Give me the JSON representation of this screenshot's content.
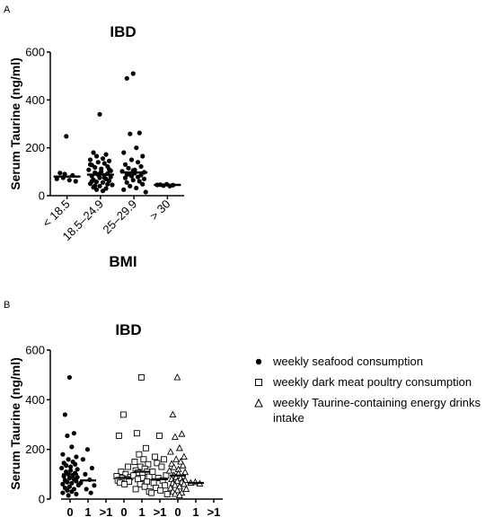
{
  "chart_data": [
    {
      "panel_label": "A",
      "type": "scatter",
      "title": "IBD",
      "xlabel": "BMI",
      "ylabel": "Serum Taurine (ng/ml)",
      "ylim": [
        0,
        600
      ],
      "yticks": [
        0,
        200,
        400,
        600
      ],
      "categories": [
        "< 18.5",
        "18.5–24.9",
        "25–29.9",
        "> 30"
      ],
      "median_lines": [
        80,
        88,
        97,
        45
      ],
      "points": [
        [
          248,
          95,
          85,
          75,
          65,
          70,
          60,
          90
        ],
        [
          340,
          180,
          172,
          165,
          155,
          150,
          145,
          140,
          135,
          128,
          122,
          118,
          112,
          108,
          104,
          100,
          96,
          92,
          88,
          85,
          82,
          78,
          75,
          70,
          66,
          62,
          58,
          55,
          50,
          45,
          40,
          35,
          30,
          25,
          20,
          130,
          110,
          90,
          75,
          60,
          48,
          42
        ],
        [
          510,
          490,
          262,
          258,
          200,
          180,
          165,
          150,
          140,
          130,
          122,
          115,
          108,
          102,
          98,
          94,
          90,
          86,
          82,
          78,
          74,
          70,
          65,
          60,
          55,
          48,
          40,
          32,
          25,
          15,
          105,
          88
        ],
        [
          48,
          46,
          44,
          42,
          40,
          45
        ]
      ]
    },
    {
      "panel_label": "B",
      "type": "scatter",
      "title": "IBD",
      "xlabel": "",
      "ylabel": "Serum Taurine (ng/ml)",
      "ylim": [
        0,
        600
      ],
      "yticks": [
        0,
        200,
        400,
        600
      ],
      "groups": [
        {
          "series": "weekly seafood consumption",
          "categories": [
            "0",
            "1",
            ">1"
          ],
          "median_lines": [
            100,
            75,
            null
          ],
          "points": [
            [
              490,
              340,
              265,
              255,
              210,
              180,
              170,
              160,
              150,
              145,
              140,
              135,
              130,
              125,
              120,
              115,
              110,
              105,
              100,
              96,
              92,
              88,
              84,
              80,
              76,
              72,
              68,
              64,
              60,
              56,
              50,
              45,
              40,
              35,
              30,
              25,
              20,
              15
            ],
            [
              200,
              160,
              125,
              100,
              78,
              65,
              55,
              40,
              25
            ],
            []
          ]
        },
        {
          "series": "weekly dark meat poultry consumption",
          "categories": [
            "0",
            "1",
            ">1"
          ],
          "median_lines": [
            85,
            110,
            80
          ],
          "points": [
            [
              340,
              255,
              130,
              110,
              100,
              92,
              88,
              84,
              80,
              75,
              70,
              66,
              60
            ],
            [
              490,
              265,
              205,
              180,
              160,
              150,
              140,
              130,
              122,
              115,
              110,
              106,
              100,
              95,
              90,
              85,
              80,
              70,
              60,
              50,
              40,
              30
            ],
            [
              255,
              170,
              160,
              145,
              130,
              110,
              95,
              85,
              75,
              65,
              55,
              45,
              35,
              25,
              20
            ]
          ]
        },
        {
          "series": "weekly Taurine-containing energy drinks intake",
          "categories": [
            "0",
            "1",
            ">1"
          ],
          "median_lines": [
            95,
            65,
            null
          ],
          "points": [
            [
              490,
              340,
              262,
              250,
              205,
              190,
              170,
              160,
              150,
              142,
              135,
              128,
              120,
              114,
              108,
              102,
              96,
              92,
              88,
              84,
              80,
              76,
              72,
              68,
              64,
              60,
              56,
              50,
              45,
              40,
              35,
              30,
              25,
              20,
              15
            ],
            [
              68,
              65,
              62
            ],
            []
          ]
        }
      ],
      "legend": {
        "placement": "right",
        "entries": [
          {
            "symbol": "filled-circle",
            "label": "weekly seafood consumption"
          },
          {
            "symbol": "open-square",
            "label": "weekly dark meat poultry consumption"
          },
          {
            "symbol": "open-triangle",
            "label": "weekly Taurine-containing energy drinks intake"
          }
        ]
      }
    }
  ]
}
